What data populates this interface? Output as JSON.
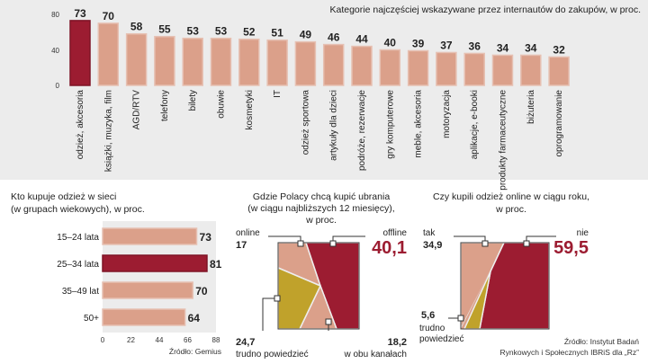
{
  "colors": {
    "salmon": "#dba08a",
    "salmon_stroke": "#e6c0b2",
    "red": "#9c1c31",
    "olive": "#c0a22b",
    "panel": "#ececec"
  },
  "chart_data": [
    {
      "type": "bar",
      "title": "Kategorie najczęściej wskazywane przez internautów do zakupów, w proc.",
      "categories": [
        "odzież, akcesoria",
        "książki, muzyka, film",
        "AGD/RTV",
        "telefony",
        "bilety",
        "obuwie",
        "kosmetyki",
        "IT",
        "odzież sportowa",
        "artykuły dla dzieci",
        "podróże, rezerwacje",
        "gry komputerowe",
        "meble, akcesoria",
        "motoryzacja",
        "aplikacje, e-booki",
        "produkty farmaceutyczne",
        "biżuteria",
        "oprogramowanie"
      ],
      "values": [
        73,
        70,
        58,
        55,
        53,
        53,
        52,
        51,
        49,
        46,
        44,
        40,
        39,
        37,
        36,
        34,
        34,
        32
      ],
      "yticks": [
        "0",
        "40",
        "80"
      ],
      "ylim": [
        0,
        80
      ],
      "highlight_index": 0
    },
    {
      "type": "bar",
      "orientation": "horizontal",
      "title_lines": [
        "Kto kupuje odzież w sieci",
        "(w grupach wiekowych), w proc."
      ],
      "categories": [
        "15–24 lata",
        "25–34 lata",
        "35–49 lat",
        "50+"
      ],
      "values": [
        73,
        81,
        70,
        64
      ],
      "xticks": [
        "0",
        "22",
        "44",
        "66",
        "88"
      ],
      "xlim": [
        0,
        88
      ],
      "highlight_index": 1,
      "source": "Źródło: Gemius"
    },
    {
      "type": "pie",
      "title_lines": [
        "Gdzie Polacy chcą kupić ubrania",
        "(w ciągu najbliższych 12 miesięcy),",
        "w proc."
      ],
      "slices": [
        {
          "label": "online",
          "value": 17,
          "value_text": "17"
        },
        {
          "label": "offline",
          "value": 40.1,
          "value_text": "40,1"
        },
        {
          "label": "w obu kanałach",
          "value": 18.2,
          "value_text": "18,2"
        },
        {
          "label": "trudno powiedzieć",
          "value": 24.7,
          "value_text": "24,7"
        }
      ]
    },
    {
      "type": "pie",
      "title_lines": [
        "Czy kupili odzież online w ciągu roku,",
        "w proc."
      ],
      "slices": [
        {
          "label": "tak",
          "value": 34.9,
          "value_text": "34,9"
        },
        {
          "label": "nie",
          "value": 59.5,
          "value_text": "59,5"
        },
        {
          "label_lines": [
            "trudno",
            "powiedzieć"
          ],
          "value": 5.6,
          "value_text": "5,6"
        }
      ],
      "source_lines": [
        "Źródło: Instytut Badań",
        "Rynkowych i Społecznych IBRiS dla „Rz”"
      ]
    }
  ]
}
